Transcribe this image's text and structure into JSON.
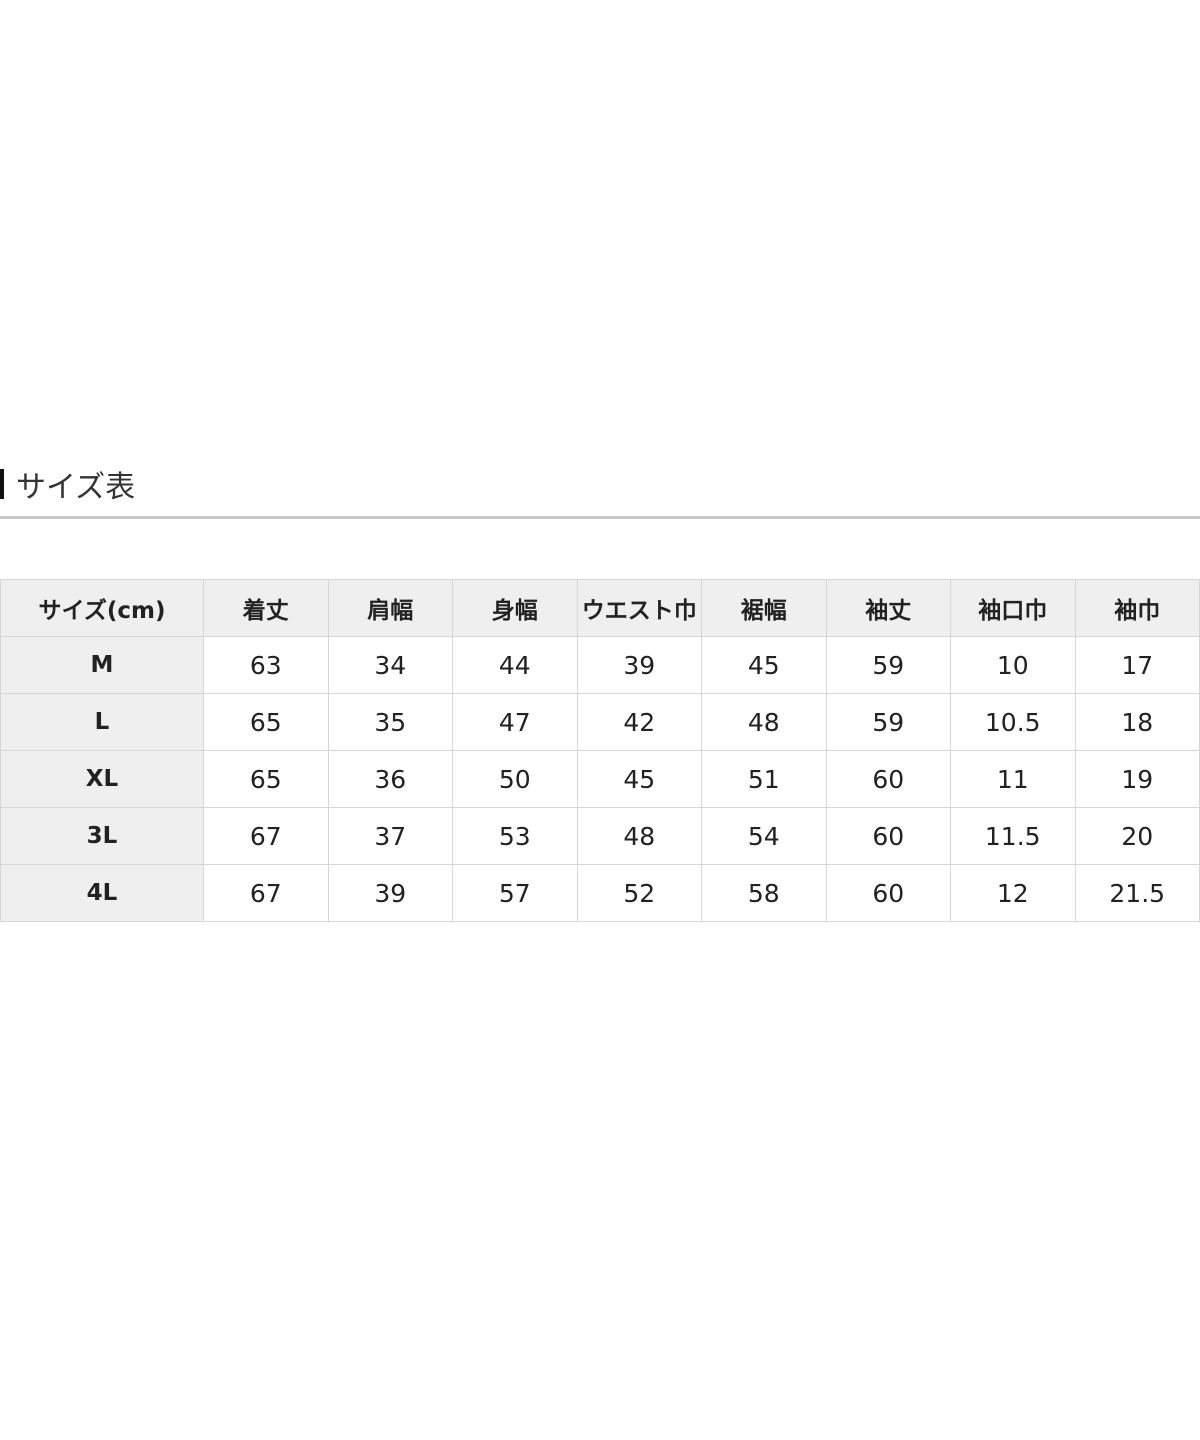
{
  "section_title": "サイズ表",
  "table": {
    "headers": [
      "サイズ(cm)",
      "着丈",
      "肩幅",
      "身幅",
      "ウエスト巾",
      "裾幅",
      "袖丈",
      "袖口巾",
      "袖巾"
    ],
    "rows": [
      [
        "M",
        "63",
        "34",
        "44",
        "39",
        "45",
        "59",
        "10",
        "17"
      ],
      [
        "L",
        "65",
        "35",
        "47",
        "42",
        "48",
        "59",
        "10.5",
        "18"
      ],
      [
        "XL",
        "65",
        "36",
        "50",
        "45",
        "51",
        "60",
        "11",
        "19"
      ],
      [
        "3L",
        "67",
        "37",
        "53",
        "48",
        "54",
        "60",
        "11.5",
        "20"
      ],
      [
        "4L",
        "67",
        "39",
        "57",
        "52",
        "58",
        "60",
        "12",
        "21.5"
      ]
    ]
  }
}
